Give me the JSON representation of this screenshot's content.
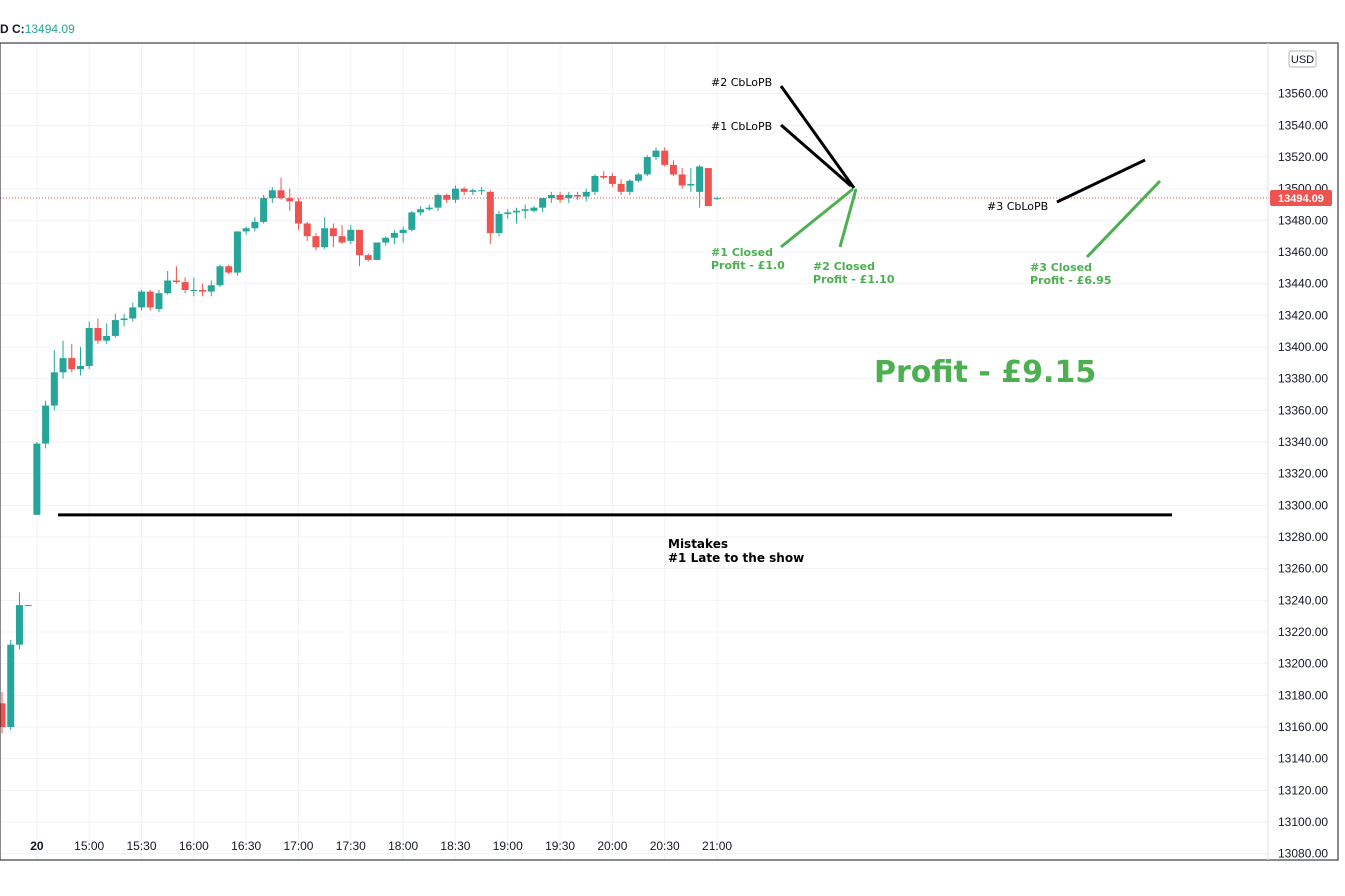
{
  "legend": {
    "prefix": "D",
    "close_label": "C:",
    "close_value": "13494.09"
  },
  "currency": "USD",
  "last_price_label": "13494.09",
  "colors": {
    "up": "#26a69a",
    "down": "#ef5350",
    "annotation_green": "#4caf50",
    "annotation_black": "#000000",
    "price_line": "#ef5350"
  },
  "annotations": {
    "entry_2": "#2 CbLoPB",
    "entry_1": "#1 CbLoPB",
    "entry_3": "#3 CbLoPB",
    "closed_1": [
      "#1 Closed",
      "Profit - £1.0"
    ],
    "closed_2": [
      "#2 Closed",
      "Profit - £1.10"
    ],
    "closed_3": [
      "#3 Closed",
      "Profit - £6.95"
    ],
    "profit_total": "Profit - £9.15",
    "mistakes_title": "Mistakes",
    "mistakes_1": "#1  Late to the show"
  },
  "chart_data": {
    "type": "candlestick",
    "x_ticks": [
      "20",
      "15:00",
      "15:30",
      "16:00",
      "16:30",
      "17:00",
      "17:30",
      "18:00",
      "18:30",
      "19:00",
      "19:30",
      "20:00",
      "20:30",
      "21:00"
    ],
    "y_ticks": [
      "13080.00",
      "13100.00",
      "13120.00",
      "13140.00",
      "13160.00",
      "13180.00",
      "13200.00",
      "13220.00",
      "13240.00",
      "13260.00",
      "13280.00",
      "13300.00",
      "13320.00",
      "13340.00",
      "13360.00",
      "13380.00",
      "13400.00",
      "13420.00",
      "13440.00",
      "13460.00",
      "13480.00",
      "13500.00",
      "13520.00",
      "13540.00",
      "13560.00"
    ],
    "ylim": [
      13076,
      13592
    ],
    "last_price": 13494.09,
    "horizontal_line": 13294,
    "candles": [
      {
        "t": "prev-1",
        "o": 13175,
        "h": 13182,
        "l": 13156,
        "c": 13160
      },
      {
        "t": "prev-2",
        "o": 13160,
        "h": 13215,
        "l": 13158,
        "c": 13212
      },
      {
        "t": "prev-3",
        "o": 13212,
        "h": 13245,
        "l": 13209,
        "c": 13237
      },
      {
        "t": "prev-4",
        "o": 13237,
        "h": 13237,
        "l": 13237,
        "c": 13237
      },
      {
        "t": "14:30",
        "o": 13294,
        "h": 13340,
        "l": 13294,
        "c": 13339
      },
      {
        "t": "14:35",
        "o": 13339,
        "h": 13366,
        "l": 13336,
        "c": 13363
      },
      {
        "t": "14:40",
        "o": 13363,
        "h": 13398,
        "l": 13360,
        "c": 13384
      },
      {
        "t": "14:45",
        "o": 13384,
        "h": 13404,
        "l": 13380,
        "c": 13393
      },
      {
        "t": "14:50",
        "o": 13393,
        "h": 13402,
        "l": 13384,
        "c": 13386
      },
      {
        "t": "14:55",
        "o": 13386,
        "h": 13400,
        "l": 13382,
        "c": 13388
      },
      {
        "t": "15:00",
        "o": 13388,
        "h": 13416,
        "l": 13386,
        "c": 13412
      },
      {
        "t": "15:05",
        "o": 13412,
        "h": 13418,
        "l": 13402,
        "c": 13404
      },
      {
        "t": "15:10",
        "o": 13404,
        "h": 13415,
        "l": 13402,
        "c": 13407
      },
      {
        "t": "15:15",
        "o": 13407,
        "h": 13421,
        "l": 13406,
        "c": 13417
      },
      {
        "t": "15:20",
        "o": 13417,
        "h": 13421,
        "l": 13413,
        "c": 13418
      },
      {
        "t": "15:25",
        "o": 13418,
        "h": 13428,
        "l": 13416,
        "c": 13425
      },
      {
        "t": "15:30",
        "o": 13425,
        "h": 13436,
        "l": 13423,
        "c": 13435
      },
      {
        "t": "15:35",
        "o": 13435,
        "h": 13436,
        "l": 13423,
        "c": 13425
      },
      {
        "t": "15:40",
        "o": 13424,
        "h": 13436,
        "l": 13422,
        "c": 13434
      },
      {
        "t": "15:45",
        "o": 13434,
        "h": 13448,
        "l": 13433,
        "c": 13442
      },
      {
        "t": "15:50",
        "o": 13442,
        "h": 13451,
        "l": 13440,
        "c": 13441
      },
      {
        "t": "15:55",
        "o": 13441,
        "h": 13444,
        "l": 13434,
        "c": 13436
      },
      {
        "t": "16:00",
        "o": 13436,
        "h": 13444,
        "l": 13432,
        "c": 13436
      },
      {
        "t": "16:05",
        "o": 13436,
        "h": 13440,
        "l": 13432,
        "c": 13435
      },
      {
        "t": "16:10",
        "o": 13435,
        "h": 13442,
        "l": 13432,
        "c": 13439
      },
      {
        "t": "16:15",
        "o": 13439,
        "h": 13452,
        "l": 13438,
        "c": 13451
      },
      {
        "t": "16:20",
        "o": 13451,
        "h": 13452,
        "l": 13446,
        "c": 13447
      },
      {
        "t": "16:25",
        "o": 13447,
        "h": 13473,
        "l": 13445,
        "c": 13473
      },
      {
        "t": "16:30",
        "o": 13473,
        "h": 13476,
        "l": 13471,
        "c": 13475
      },
      {
        "t": "16:35",
        "o": 13475,
        "h": 13482,
        "l": 13473,
        "c": 13479
      },
      {
        "t": "16:40",
        "o": 13479,
        "h": 13496,
        "l": 13478,
        "c": 13494
      },
      {
        "t": "16:45",
        "o": 13494,
        "h": 13501,
        "l": 13491,
        "c": 13499
      },
      {
        "t": "16:50",
        "o": 13499,
        "h": 13507,
        "l": 13493,
        "c": 13494
      },
      {
        "t": "16:55",
        "o": 13494,
        "h": 13500,
        "l": 13486,
        "c": 13492
      },
      {
        "t": "17:00",
        "o": 13492,
        "h": 13494,
        "l": 13474,
        "c": 13478
      },
      {
        "t": "17:05",
        "o": 13478,
        "h": 13479,
        "l": 13467,
        "c": 13470
      },
      {
        "t": "17:10",
        "o": 13470,
        "h": 13472,
        "l": 13461,
        "c": 13463
      },
      {
        "t": "17:15",
        "o": 13463,
        "h": 13482,
        "l": 13462,
        "c": 13475
      },
      {
        "t": "17:20",
        "o": 13475,
        "h": 13478,
        "l": 13463,
        "c": 13470
      },
      {
        "t": "17:25",
        "o": 13470,
        "h": 13477,
        "l": 13465,
        "c": 13466
      },
      {
        "t": "17:30",
        "o": 13467,
        "h": 13477,
        "l": 13465,
        "c": 13474
      },
      {
        "t": "17:35",
        "o": 13474,
        "h": 13474,
        "l": 13451,
        "c": 13458
      },
      {
        "t": "17:40",
        "o": 13458,
        "h": 13459,
        "l": 13454,
        "c": 13455
      },
      {
        "t": "17:45",
        "o": 13455,
        "h": 13466,
        "l": 13455,
        "c": 13466
      },
      {
        "t": "17:50",
        "o": 13466,
        "h": 13470,
        "l": 13464,
        "c": 13469
      },
      {
        "t": "17:55",
        "o": 13469,
        "h": 13474,
        "l": 13465,
        "c": 13472
      },
      {
        "t": "18:00",
        "o": 13472,
        "h": 13476,
        "l": 13466,
        "c": 13474
      },
      {
        "t": "18:05",
        "o": 13474,
        "h": 13486,
        "l": 13473,
        "c": 13485
      },
      {
        "t": "18:10",
        "o": 13485,
        "h": 13489,
        "l": 13483,
        "c": 13487
      },
      {
        "t": "18:15",
        "o": 13487,
        "h": 13490,
        "l": 13486,
        "c": 13488
      },
      {
        "t": "18:20",
        "o": 13488,
        "h": 13497,
        "l": 13486,
        "c": 13496
      },
      {
        "t": "18:25",
        "o": 13496,
        "h": 13497,
        "l": 13491,
        "c": 13493
      },
      {
        "t": "18:30",
        "o": 13493,
        "h": 13502,
        "l": 13491,
        "c": 13500
      },
      {
        "t": "18:35",
        "o": 13500,
        "h": 13501,
        "l": 13496,
        "c": 13498
      },
      {
        "t": "18:40",
        "o": 13498,
        "h": 13500,
        "l": 13496,
        "c": 13499
      },
      {
        "t": "18:45",
        "o": 13499,
        "h": 13501,
        "l": 13496,
        "c": 13499
      },
      {
        "t": "18:50",
        "o": 13498,
        "h": 13499,
        "l": 13465,
        "c": 13472
      },
      {
        "t": "18:55",
        "o": 13472,
        "h": 13486,
        "l": 13470,
        "c": 13484
      },
      {
        "t": "19:00",
        "o": 13484,
        "h": 13487,
        "l": 13481,
        "c": 13485
      },
      {
        "t": "19:05",
        "o": 13485,
        "h": 13488,
        "l": 13478,
        "c": 13486
      },
      {
        "t": "19:10",
        "o": 13486,
        "h": 13490,
        "l": 13481,
        "c": 13487
      },
      {
        "t": "19:15",
        "o": 13486,
        "h": 13489,
        "l": 13485,
        "c": 13488
      },
      {
        "t": "19:20",
        "o": 13488,
        "h": 13494,
        "l": 13485,
        "c": 13494
      },
      {
        "t": "19:25",
        "o": 13494,
        "h": 13498,
        "l": 13491,
        "c": 13496
      },
      {
        "t": "19:30",
        "o": 13496,
        "h": 13498,
        "l": 13491,
        "c": 13493
      },
      {
        "t": "19:35",
        "o": 13494,
        "h": 13498,
        "l": 13491,
        "c": 13496
      },
      {
        "t": "19:40",
        "o": 13496,
        "h": 13498,
        "l": 13493,
        "c": 13495
      },
      {
        "t": "19:45",
        "o": 13495,
        "h": 13500,
        "l": 13492,
        "c": 13498
      },
      {
        "t": "19:50",
        "o": 13498,
        "h": 13509,
        "l": 13496,
        "c": 13508
      },
      {
        "t": "19:55",
        "o": 13508,
        "h": 13511,
        "l": 13506,
        "c": 13507
      },
      {
        "t": "20:00",
        "o": 13508,
        "h": 13510,
        "l": 13501,
        "c": 13503
      },
      {
        "t": "20:05",
        "o": 13503,
        "h": 13506,
        "l": 13496,
        "c": 13498
      },
      {
        "t": "20:10",
        "o": 13498,
        "h": 13506,
        "l": 13496,
        "c": 13505
      },
      {
        "t": "20:15",
        "o": 13505,
        "h": 13510,
        "l": 13504,
        "c": 13509
      },
      {
        "t": "20:20",
        "o": 13509,
        "h": 13521,
        "l": 13508,
        "c": 13520
      },
      {
        "t": "20:25",
        "o": 13520,
        "h": 13526,
        "l": 13518,
        "c": 13524
      },
      {
        "t": "20:30",
        "o": 13524,
        "h": 13526,
        "l": 13514,
        "c": 13515
      },
      {
        "t": "20:35",
        "o": 13515,
        "h": 13518,
        "l": 13508,
        "c": 13509
      },
      {
        "t": "20:40",
        "o": 13509,
        "h": 13513,
        "l": 13500,
        "c": 13502
      },
      {
        "t": "20:45",
        "o": 13502,
        "h": 13513,
        "l": 13498,
        "c": 13503
      },
      {
        "t": "20:50",
        "o": 13498,
        "h": 13515,
        "l": 13488,
        "c": 13514
      },
      {
        "t": "20:55",
        "o": 13513,
        "h": 13513,
        "l": 13489,
        "c": 13489
      },
      {
        "t": "21:00",
        "o": 13494,
        "h": 13495,
        "l": 13493,
        "c": 13494
      }
    ]
  }
}
